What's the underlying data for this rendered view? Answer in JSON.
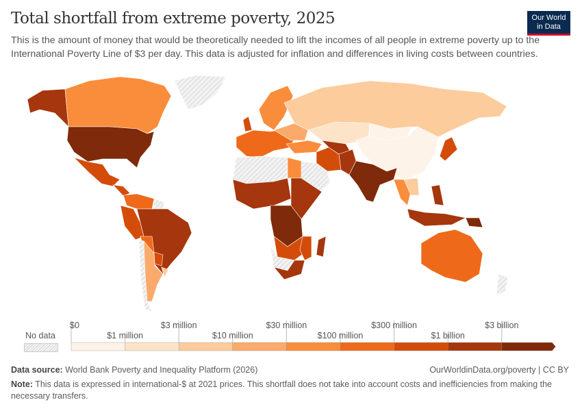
{
  "header": {
    "title": "Total shortfall from extreme poverty, 2025",
    "subtitle": "This is the amount of money that would be theoretically needed to lift the incomes of all people in extreme poverty up to the International Poverty Line of $3 per day. This data is adjusted for inflation and differences in living costs between countries.",
    "logo_line1": "Our World",
    "logo_line2": "in Data"
  },
  "legend": {
    "no_data_label": "No data",
    "ticks": [
      "$0",
      "$1 million",
      "$3 million",
      "$10 million",
      "$30 million",
      "$100 million",
      "$300 million",
      "$1 billion",
      "$3 billion"
    ],
    "bin_colors": [
      "#fef3e8",
      "#fde3c8",
      "#fccc9d",
      "#fbaa6b",
      "#f98d3c",
      "#ee6a1a",
      "#d44c0a",
      "#a5360d",
      "#7f2a0a"
    ],
    "no_data_color": "#e0e0e0"
  },
  "footer": {
    "source_label": "Data source:",
    "source": "World Bank Poverty and Inequality Platform (2026)",
    "url": "OurWorldinData.org/poverty | CC BY",
    "note_label": "Note:",
    "note": "This data is expressed in international-$ at 2021 prices. This shortfall does not take into account costs and inefficiencies from making the necessary transfers."
  }
}
